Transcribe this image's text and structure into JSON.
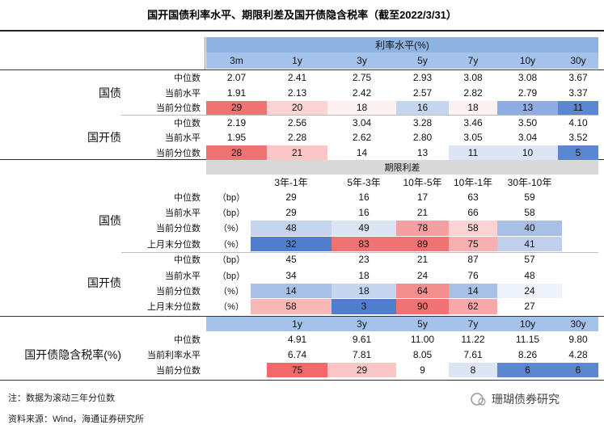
{
  "title": "国开国债利率水平、期限利差及国开债隐含税率（截至2022/3/31）",
  "rate_level": {
    "header": "利率水平(%)",
    "columns": [
      "3m",
      "1y",
      "3y",
      "5y",
      "7y",
      "10y",
      "30y"
    ],
    "groups": [
      {
        "name": "国债",
        "rows": [
          {
            "label": "中位数",
            "values": [
              "2.07",
              "2.41",
              "2.75",
              "2.93",
              "3.08",
              "3.08",
              "3.67"
            ]
          },
          {
            "label": "当前水平",
            "values": [
              "1.91",
              "2.13",
              "2.42",
              "2.57",
              "2.82",
              "2.79",
              "3.37"
            ]
          },
          {
            "label": "当前分位数",
            "values": [
              "29",
              "20",
              "18",
              "16",
              "18",
              "13",
              "11"
            ],
            "colors": [
              "#f07272",
              "#fbd3d3",
              "#fdf1f1",
              "#c6d5ee",
              "#fdf1f1",
              "#8fade0",
              "#5b87d0"
            ]
          }
        ]
      },
      {
        "name": "国开债",
        "rows": [
          {
            "label": "中位数",
            "values": [
              "2.19",
              "2.56",
              "3.04",
              "3.28",
              "3.46",
              "3.50",
              "4.10"
            ]
          },
          {
            "label": "当前水平",
            "values": [
              "1.95",
              "2.28",
              "2.62",
              "2.80",
              "3.05",
              "3.04",
              "3.52"
            ]
          },
          {
            "label": "当前分位数",
            "values": [
              "28",
              "21",
              "14",
              "13",
              "11",
              "10",
              "5"
            ],
            "colors": [
              "#f07272",
              "#fbc6c6",
              "#ffffff",
              "#ffffff",
              "#dce5f4",
              "#dce5f4",
              "#5b87d0"
            ]
          }
        ]
      }
    ]
  },
  "term_spread": {
    "header": "期限利差",
    "columns": [
      "3年-1年",
      "5年-3年",
      "10年-5年",
      "10年-1年",
      "30年-10年"
    ],
    "groups": [
      {
        "name": "国债",
        "rows": [
          {
            "label": "中位数",
            "unit": "（bp）",
            "values": [
              "29",
              "16",
              "17",
              "63",
              "59"
            ]
          },
          {
            "label": "当前水平",
            "unit": "（bp）",
            "values": [
              "29",
              "16",
              "21",
              "66",
              "58"
            ]
          },
          {
            "label": "当前分位数",
            "unit": "（%）",
            "values": [
              "48",
              "49",
              "78",
              "58",
              "40"
            ],
            "colors": [
              "#c6d5ee",
              "#dce5f4",
              "#f4a0a0",
              "#fbd3d3",
              "#a9c0e6"
            ]
          },
          {
            "label": "上月末分位数",
            "unit": "（%）",
            "values": [
              "32",
              "83",
              "89",
              "75",
              "41"
            ],
            "colors": [
              "#4f7fcc",
              "#f07272",
              "#f07272",
              "#f7b0b0",
              "#c0d0ec"
            ]
          }
        ]
      },
      {
        "name": "国开债",
        "rows": [
          {
            "label": "中位数",
            "unit": "（bp）",
            "values": [
              "45",
              "23",
              "21",
              "87",
              "57"
            ]
          },
          {
            "label": "当前水平",
            "unit": "（bp）",
            "values": [
              "34",
              "18",
              "24",
              "76",
              "48"
            ]
          },
          {
            "label": "当前分位数",
            "unit": "（%）",
            "values": [
              "14",
              "18",
              "64",
              "14",
              "24"
            ],
            "colors": [
              "#a9c0e6",
              "#c6d5ee",
              "#f48f8f",
              "#a9c0e6",
              "#eef2fa"
            ]
          },
          {
            "label": "上月末分位数",
            "unit": "（%）",
            "values": [
              "58",
              "3",
              "90",
              "62",
              "27"
            ],
            "colors": [
              "#f9b8b8",
              "#4f7fcc",
              "#f07272",
              "#f7a8a8",
              "#ffffff"
            ]
          }
        ]
      }
    ]
  },
  "implied_tax": {
    "name": "国开债隐含税率(%)",
    "columns": [
      "1y",
      "3y",
      "5y",
      "7y",
      "10y",
      "30y"
    ],
    "rows": [
      {
        "label": "中位数",
        "values": [
          "4.91",
          "9.61",
          "11.00",
          "11.22",
          "11.15",
          "9.80"
        ]
      },
      {
        "label": "当前利率水平",
        "values": [
          "6.74",
          "7.81",
          "8.05",
          "7.61",
          "8.26",
          "4.28"
        ]
      },
      {
        "label": "当前分位数",
        "values": [
          "75",
          "29",
          "9",
          "8",
          "6",
          "6"
        ],
        "colors": [
          "#f06a6a",
          "#fbc6c6",
          "#ffffff",
          "#dce5f4",
          "#5b87d0",
          "#5b87d0"
        ]
      }
    ]
  },
  "notes": [
    "注：数据为滚动三年分位数",
    "资料来源：Wind，海通证券研究所"
  ],
  "watermark": "珊瑚债券研究"
}
